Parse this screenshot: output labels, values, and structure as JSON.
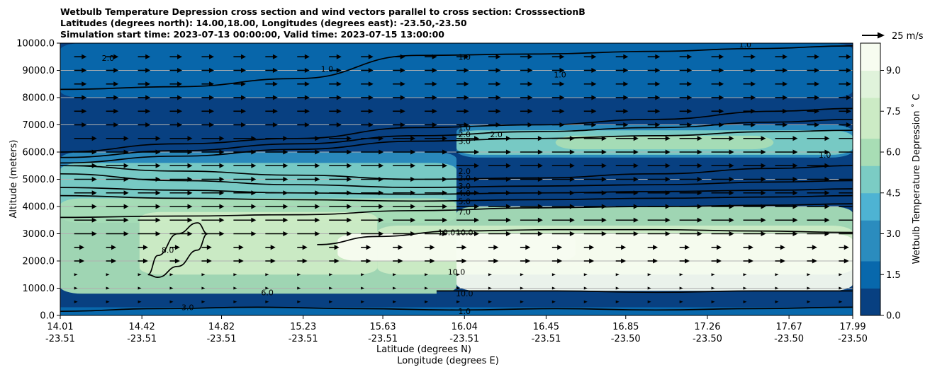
{
  "chart_data": {
    "type": "contour",
    "title_lines": [
      "Wetbulb Temperature Depression cross section and wind vectors parallel to cross section: CrosssectionB",
      "Latitudes (degrees north): 14.00,18.00, Longitudes (degrees east): -23.50,-23.50",
      "Simulation start time: 2023-07-13 00:00:00, Valid time: 2023-07-15 13:00:00"
    ],
    "xlabel_lat": "Latitude (degrees N)",
    "xlabel_lon": "Longitude (degrees E)",
    "ylabel": "Altitude (meters)",
    "colorbar_label": "Wetbulb Temperature Depression ˚ C",
    "quiver_key_label": "25 m/s",
    "xlim": [
      14.01,
      17.99
    ],
    "ylim": [
      0,
      10000
    ],
    "x_ticks": [
      {
        "lat": "14.01",
        "lon": "-23.51",
        "value": 14.01
      },
      {
        "lat": "14.42",
        "lon": "-23.51",
        "value": 14.42
      },
      {
        "lat": "14.82",
        "lon": "-23.51",
        "value": 14.82
      },
      {
        "lat": "15.23",
        "lon": "-23.51",
        "value": 15.23
      },
      {
        "lat": "15.63",
        "lon": "-23.51",
        "value": 15.63
      },
      {
        "lat": "16.04",
        "lon": "-23.51",
        "value": 16.04
      },
      {
        "lat": "16.45",
        "lon": "-23.51",
        "value": 16.45
      },
      {
        "lat": "16.85",
        "lon": "-23.50",
        "value": 16.85
      },
      {
        "lat": "17.26",
        "lon": "-23.50",
        "value": 17.26
      },
      {
        "lat": "17.67",
        "lon": "-23.50",
        "value": 17.67
      },
      {
        "lat": "17.99",
        "lon": "-23.50",
        "value": 17.99
      }
    ],
    "y_ticks": [
      {
        "label": "0.0",
        "value": 0
      },
      {
        "label": "1000.0",
        "value": 1000
      },
      {
        "label": "2000.0",
        "value": 2000
      },
      {
        "label": "3000.0",
        "value": 3000
      },
      {
        "label": "4000.0",
        "value": 4000
      },
      {
        "label": "5000.0",
        "value": 5000
      },
      {
        "label": "6000.0",
        "value": 6000
      },
      {
        "label": "7000.0",
        "value": 7000
      },
      {
        "label": "8000.0",
        "value": 8000
      },
      {
        "label": "9000.0",
        "value": 9000
      },
      {
        "label": "10000.0",
        "value": 10000
      }
    ],
    "colorbar_range": [
      0,
      10
    ],
    "colorbar_ticks": [
      {
        "label": "0.0",
        "value": 0
      },
      {
        "label": "1.5",
        "value": 1.5
      },
      {
        "label": "3.0",
        "value": 3
      },
      {
        "label": "4.5",
        "value": 4.5
      },
      {
        "label": "6.0",
        "value": 6
      },
      {
        "label": "7.5",
        "value": 7.5
      },
      {
        "label": "9.0",
        "value": 9
      }
    ],
    "colors": [
      "#084081",
      "#0868ac",
      "#2b8cbe",
      "#4eb3d3",
      "#7bccc4",
      "#a8ddb5",
      "#ccebc5",
      "#e0f3db",
      "#f7fcf0"
    ],
    "layers": [
      {
        "zmin": 10000,
        "zmax": 0,
        "value": 0.5
      },
      {
        "value": 1.5,
        "bands": [
          [
            8000,
            10000,
            0,
            4
          ]
        ]
      },
      {
        "value": 3.0,
        "bands": [
          [
            3500,
            6000,
            0,
            2
          ],
          [
            5800,
            7000,
            2,
            4
          ]
        ]
      },
      {
        "value": 4.5,
        "bands": [
          [
            3400,
            5600,
            0,
            2
          ],
          [
            5900,
            6800,
            2,
            4
          ]
        ]
      },
      {
        "value": 6.0,
        "bands": [
          [
            800,
            4300,
            0,
            2
          ],
          [
            1800,
            4000,
            2,
            4
          ],
          [
            6100,
            6600,
            2.5,
            3.6
          ]
        ]
      },
      {
        "value": 7.5,
        "bands": [
          [
            1500,
            3800,
            0.4,
            1.6
          ],
          [
            1500,
            3300,
            1.6,
            4
          ]
        ]
      },
      {
        "value": 9.0,
        "bands": [
          [
            2000,
            3000,
            1.4,
            2.6
          ]
        ]
      },
      {
        "value": 10.0,
        "bands": [
          [
            900,
            3000,
            2.0,
            4
          ]
        ]
      }
    ],
    "contours": [
      {
        "value": 1.0,
        "x": [
          14.01,
          14.6,
          15.2,
          15.8,
          16.4,
          17.0,
          17.5,
          17.99
        ],
        "y": [
          8300,
          8400,
          8700,
          9550,
          9600,
          9700,
          9800,
          9900
        ]
      },
      {
        "value": 1.0,
        "x": [
          14.01,
          14.6,
          15.2,
          15.8,
          16.4,
          17.0,
          17.6,
          17.99
        ],
        "y": [
          6000,
          6300,
          6500,
          6900,
          7000,
          7200,
          7500,
          7600
        ]
      },
      {
        "value": 2.0,
        "x": [
          14.01,
          14.6,
          15.2,
          15.8,
          16.4,
          17.0,
          17.6,
          17.99
        ],
        "y": [
          5800,
          6050,
          6300,
          6600,
          6750,
          6900,
          7100,
          7200
        ]
      },
      {
        "value": 3.0,
        "x": [
          14.01,
          14.6,
          15.2,
          15.8,
          16.4,
          17.0,
          17.6,
          17.99
        ],
        "y": [
          5600,
          5850,
          6100,
          6400,
          6500,
          6600,
          6750,
          6800
        ]
      },
      {
        "value": 2.0,
        "x": [
          14.01,
          14.6,
          15.2,
          15.8,
          16.4,
          17.0,
          17.6,
          17.99
        ],
        "y": [
          5500,
          5300,
          5150,
          5000,
          5050,
          5200,
          5400,
          5500
        ]
      },
      {
        "value": 3.0,
        "x": [
          14.01,
          14.6,
          15.2,
          15.8,
          16.4,
          17.0,
          17.6,
          17.99
        ],
        "y": [
          5200,
          4950,
          4800,
          4700,
          4750,
          4800,
          4900,
          4950
        ]
      },
      {
        "value": 4.0,
        "x": [
          14.01,
          14.6,
          15.2,
          15.8,
          16.4,
          17.0,
          17.6,
          17.99
        ],
        "y": [
          4700,
          4600,
          4500,
          4450,
          4500,
          4550,
          4600,
          4650
        ]
      },
      {
        "value": 5.0,
        "x": [
          14.01,
          14.6,
          15.2,
          15.8,
          16.4,
          17.0,
          17.6,
          17.99
        ],
        "y": [
          4400,
          4300,
          4250,
          4200,
          4250,
          4300,
          4350,
          4400
        ]
      },
      {
        "value": 7.0,
        "x": [
          14.01,
          14.6,
          15.2,
          15.8,
          16.4,
          17.0,
          17.6,
          17.99
        ],
        "y": [
          3600,
          3650,
          3700,
          3850,
          3950,
          4000,
          4050,
          4100
        ]
      },
      {
        "value": 10.0,
        "x": [
          15.3,
          15.6,
          16.0,
          16.5,
          17.0,
          17.5,
          17.99
        ],
        "y": [
          2600,
          2900,
          3100,
          3150,
          3150,
          3100,
          3050
        ]
      },
      {
        "value": 8.0,
        "x": [
          14.45,
          14.5,
          14.6,
          14.7,
          14.75,
          14.7,
          14.6,
          14.5,
          14.45
        ],
        "y": [
          1500,
          2200,
          3000,
          3400,
          3000,
          2400,
          1800,
          1400,
          1500
        ]
      },
      {
        "value": 10.0,
        "x": [
          15.9,
          16.5,
          17.0,
          17.5,
          17.99
        ],
        "y": [
          900,
          900,
          850,
          900,
          900
        ]
      },
      {
        "value": 1.0,
        "x": [
          14.01,
          14.5,
          15.0,
          15.5,
          16.0,
          16.5,
          17.0,
          17.5,
          17.99
        ],
        "y": [
          150,
          250,
          300,
          250,
          200,
          250,
          200,
          250,
          300
        ]
      }
    ],
    "contour_labels": [
      {
        "text": "1.0",
        "x": 16.04,
        "y": 9500
      },
      {
        "text": "2.0",
        "x": 14.25,
        "y": 9450
      },
      {
        "text": "1.0",
        "x": 15.35,
        "y": 9050
      },
      {
        "text": "1.0",
        "x": 16.52,
        "y": 8850
      },
      {
        "text": "1.0",
        "x": 17.45,
        "y": 9950
      },
      {
        "text": "1.0",
        "x": 16.04,
        "y": 6900
      },
      {
        "text": "2.0",
        "x": 16.04,
        "y": 6650
      },
      {
        "text": "2.0",
        "x": 16.2,
        "y": 6650
      },
      {
        "text": "3.0",
        "x": 16.04,
        "y": 6400
      },
      {
        "text": "1.0",
        "x": 17.85,
        "y": 5900
      },
      {
        "text": "2.0",
        "x": 16.04,
        "y": 5300
      },
      {
        "text": "2.0",
        "x": 16.04,
        "y": 5050
      },
      {
        "text": "3.0",
        "x": 16.04,
        "y": 4750
      },
      {
        "text": "4.0",
        "x": 16.04,
        "y": 4500
      },
      {
        "text": "5.0",
        "x": 16.04,
        "y": 4200
      },
      {
        "text": "7.0",
        "x": 16.04,
        "y": 3800
      },
      {
        "text": "10.0",
        "x": 15.95,
        "y": 3050
      },
      {
        "text": "10.0",
        "x": 16.04,
        "y": 3050
      },
      {
        "text": "8.0",
        "x": 14.55,
        "y": 2400
      },
      {
        "text": "10.0",
        "x": 16.0,
        "y": 1600
      },
      {
        "text": "6.0",
        "x": 15.05,
        "y": 850
      },
      {
        "text": "3.0",
        "x": 14.65,
        "y": 300
      },
      {
        "text": "10.0",
        "x": 16.04,
        "y": 800
      },
      {
        "text": "1.0",
        "x": 16.04,
        "y": 150
      }
    ]
  }
}
